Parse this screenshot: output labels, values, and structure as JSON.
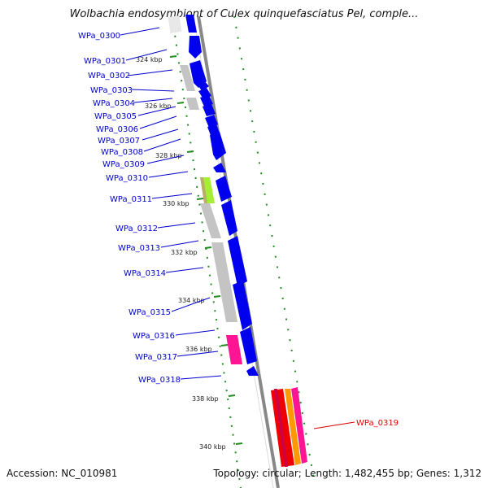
{
  "title": "Wolbachia endosymbiont of Culex quinquefasciatus Pel, comple...",
  "footer": {
    "accession": "Accession: NC_010981",
    "summary": "Topology: circular; Length: 1,482,455 bp; Genes: 1,312"
  },
  "colors": {
    "backbone": "#888888",
    "forward_gene": "#0000ee",
    "gray_feature": "#c4c4c4",
    "lime_feature": "#99ee33",
    "magenta_feature": "#ff1493",
    "red_feature": "#ee0000",
    "orange_feature": "#ff9900",
    "tick": "#228b22",
    "label_blue": "#0000cc",
    "label_red": "#dd0000"
  },
  "scale": {
    "unit": "kbp",
    "ticks": [
      {
        "label": "324 kbp"
      },
      {
        "label": "326 kbp"
      },
      {
        "label": "328 kbp"
      },
      {
        "label": "330 kbp"
      },
      {
        "label": "332 kbp"
      },
      {
        "label": "334 kbp"
      },
      {
        "label": "336 kbp"
      },
      {
        "label": "338 kbp"
      },
      {
        "label": "340 kbp"
      }
    ]
  },
  "genes": [
    {
      "id": "WPa_0300",
      "color": "blue"
    },
    {
      "id": "WPa_0301",
      "color": "blue"
    },
    {
      "id": "WPa_0302",
      "color": "blue"
    },
    {
      "id": "WPa_0303",
      "color": "blue"
    },
    {
      "id": "WPa_0304",
      "color": "blue"
    },
    {
      "id": "WPa_0305",
      "color": "blue"
    },
    {
      "id": "WPa_0306",
      "color": "blue"
    },
    {
      "id": "WPa_0307",
      "color": "blue"
    },
    {
      "id": "WPa_0308",
      "color": "blue"
    },
    {
      "id": "WPa_0309",
      "color": "blue"
    },
    {
      "id": "WPa_0310",
      "color": "blue"
    },
    {
      "id": "WPa_0311",
      "color": "blue"
    },
    {
      "id": "WPa_0312",
      "color": "blue"
    },
    {
      "id": "WPa_0313",
      "color": "blue"
    },
    {
      "id": "WPa_0314",
      "color": "blue"
    },
    {
      "id": "WPa_0315",
      "color": "blue"
    },
    {
      "id": "WPa_0316",
      "color": "blue"
    },
    {
      "id": "WPa_0317",
      "color": "blue"
    },
    {
      "id": "WPa_0318",
      "color": "blue"
    },
    {
      "id": "WPa_0319",
      "color": "red"
    }
  ]
}
